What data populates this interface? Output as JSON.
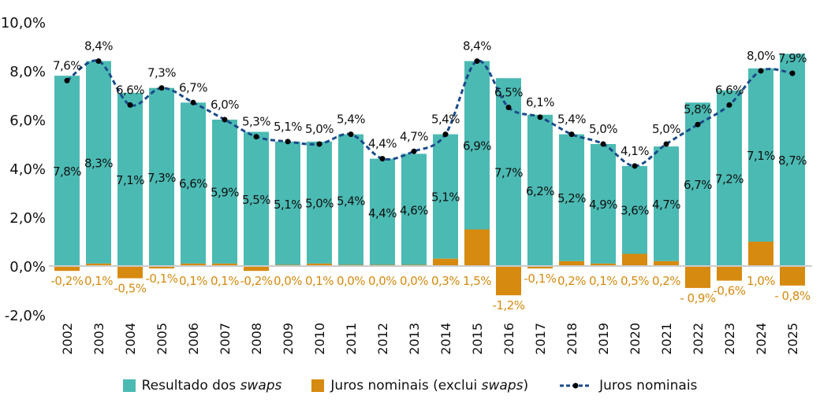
{
  "chart_data": {
    "type": "bar",
    "stacked": true,
    "categories": [
      "2002",
      "2003",
      "2004",
      "2005",
      "2006",
      "2007",
      "2008",
      "2009",
      "2010",
      "2011",
      "2012",
      "2013",
      "2014",
      "2015",
      "2016",
      "2017",
      "2018",
      "2019",
      "2020",
      "2021",
      "2022",
      "2023",
      "2024",
      "2025"
    ],
    "ylim": [
      -2,
      10
    ],
    "yticks": [
      "-2,0%",
      "0,0%",
      "2,0%",
      "4,0%",
      "6,0%",
      "8,0%",
      "10,0%"
    ],
    "grid": false,
    "legend_placement": "bottom",
    "colors": {
      "swaps": "#4bbab3",
      "juros_excl": "#d68a0f",
      "line": "#1a4a8a"
    },
    "series": [
      {
        "name": "Resultado dos swaps",
        "name_prefix": "Resultado dos ",
        "name_italic": "swaps",
        "type": "bar",
        "values": [
          7.8,
          8.3,
          7.1,
          7.3,
          6.6,
          5.9,
          5.5,
          5.1,
          5.0,
          5.4,
          4.4,
          4.6,
          5.1,
          6.9,
          7.7,
          6.2,
          5.2,
          4.9,
          3.6,
          4.7,
          6.7,
          7.2,
          7.1,
          8.7
        ],
        "labels": [
          "7,8%",
          "8,3%",
          "7,1%",
          "7,3%",
          "6,6%",
          "5,9%",
          "5,5%",
          "5,1%",
          "5,0%",
          "5,4%",
          "4,4%",
          "4,6%",
          "5,1%",
          "6,9%",
          "7,7%",
          "6,2%",
          "5,2%",
          "4,9%",
          "3,6%",
          "4,7%",
          "6,7%",
          "7,2%",
          "7,1%",
          "8,7%"
        ]
      },
      {
        "name": "Juros nominais (exclui swaps)",
        "name_prefix": "Juros nominais (exclui ",
        "name_italic": "swaps",
        "name_suffix": ")",
        "type": "bar",
        "values": [
          -0.2,
          0.1,
          -0.5,
          -0.1,
          0.1,
          0.1,
          -0.2,
          0.0,
          0.1,
          0.0,
          0.0,
          0.0,
          0.3,
          1.5,
          -1.2,
          -0.1,
          0.2,
          0.1,
          0.5,
          0.2,
          -0.9,
          -0.6,
          1.0,
          -0.8
        ],
        "labels": [
          "-0,2%",
          "0,1%",
          "-0,5%",
          "-0,1%",
          "0,1%",
          "0,1%",
          "-0,2%",
          "0,0%",
          "0,1%",
          "0,0%",
          "0,0%",
          "0,0%",
          "0,3%",
          "1,5%",
          "-1,2%",
          "-0,1%",
          "0,2%",
          "0,1%",
          "0,5%",
          "0,2%",
          "- 0,9%",
          "-0,6%",
          "1,0%",
          "- 0,8%"
        ]
      },
      {
        "name": "Juros nominais",
        "type": "line",
        "values": [
          7.6,
          8.4,
          6.6,
          7.3,
          6.7,
          6.0,
          5.3,
          5.1,
          5.0,
          5.4,
          4.4,
          4.7,
          5.4,
          8.4,
          6.5,
          6.1,
          5.4,
          5.0,
          4.1,
          5.0,
          5.8,
          6.6,
          8.0,
          7.9
        ],
        "labels": [
          "7,6%",
          "8,4%",
          "6,6%",
          "7,3%",
          "6,7%",
          "6,0%",
          "5,3%",
          "5,1%",
          "5,0%",
          "5,4%",
          "4,4%",
          "4,7%",
          "5,4%",
          "8,4%",
          "6,5%",
          "6,1%",
          "5,4%",
          "5,0%",
          "4,1%",
          "5,0%",
          "5,8%",
          "6,6%",
          "8,0%",
          "7,9%"
        ]
      }
    ]
  }
}
